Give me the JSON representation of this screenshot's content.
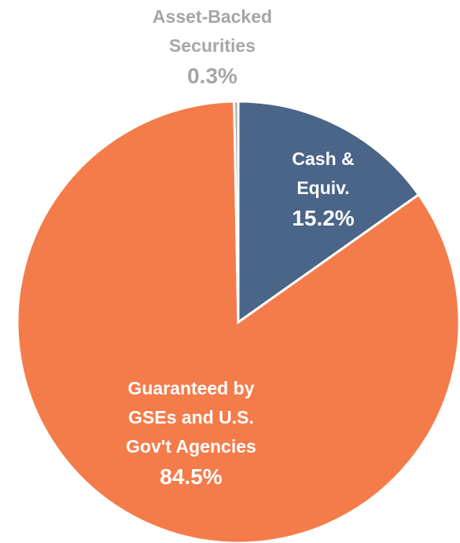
{
  "chart_data": {
    "type": "pie",
    "categories": [
      "Cash &\nEquiv.",
      "Guaranteed by\nGSEs and U.S.\nGov't Agencies",
      "Asset-Backed\nSecurities"
    ],
    "values": [
      15.2,
      84.5,
      0.3
    ],
    "value_labels": [
      "15.2%",
      "84.5%",
      "0.3%"
    ],
    "colors": [
      "#4a6587",
      "#f47c4a",
      "#a6a6a6"
    ]
  }
}
